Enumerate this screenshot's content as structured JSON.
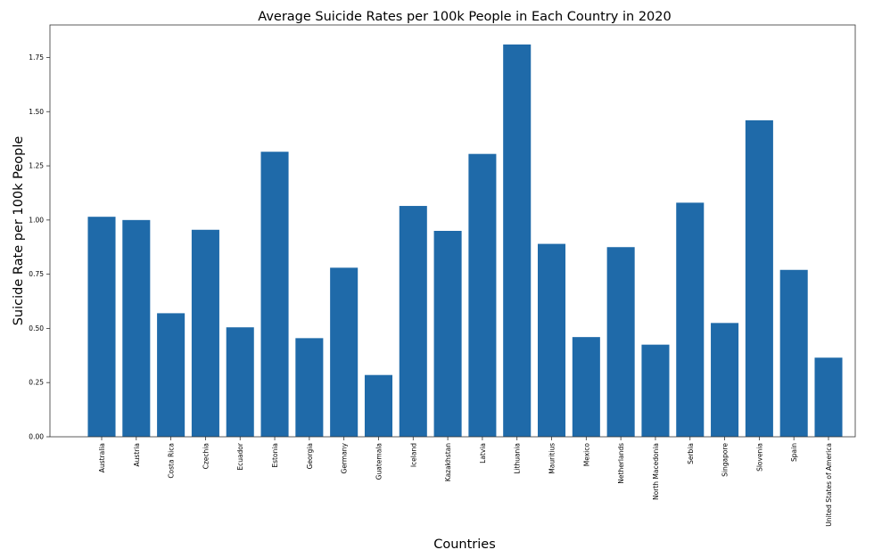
{
  "chart_data": {
    "type": "bar",
    "title": "Average Suicide Rates per 100k People in Each Country in 2020",
    "xlabel": "Countries",
    "ylabel": "Suicide Rate per 100k People",
    "ylim": [
      0,
      1.9
    ],
    "yticks": [
      "0.00",
      "0.25",
      "0.50",
      "0.75",
      "1.00",
      "1.25",
      "1.50",
      "1.75"
    ],
    "grid": false,
    "bar_color": "#1f6aa9",
    "categories": [
      "Australia",
      "Austria",
      "Costa Rica",
      "Czechia",
      "Ecuador",
      "Estonia",
      "Georgia",
      "Germany",
      "Guatemala",
      "Iceland",
      "Kazakhstan",
      "Latvia",
      "Lithuania",
      "Mauritius",
      "Mexico",
      "Netherlands",
      "North Macedonia",
      "Serbia",
      "Singapore",
      "Slovenia",
      "Spain",
      "United States of America"
    ],
    "values": [
      1.015,
      1.0,
      0.57,
      0.955,
      0.505,
      1.315,
      0.455,
      0.78,
      0.285,
      1.065,
      0.95,
      1.305,
      1.81,
      0.89,
      0.46,
      0.875,
      0.425,
      1.08,
      0.525,
      1.46,
      0.77,
      0.365
    ]
  }
}
